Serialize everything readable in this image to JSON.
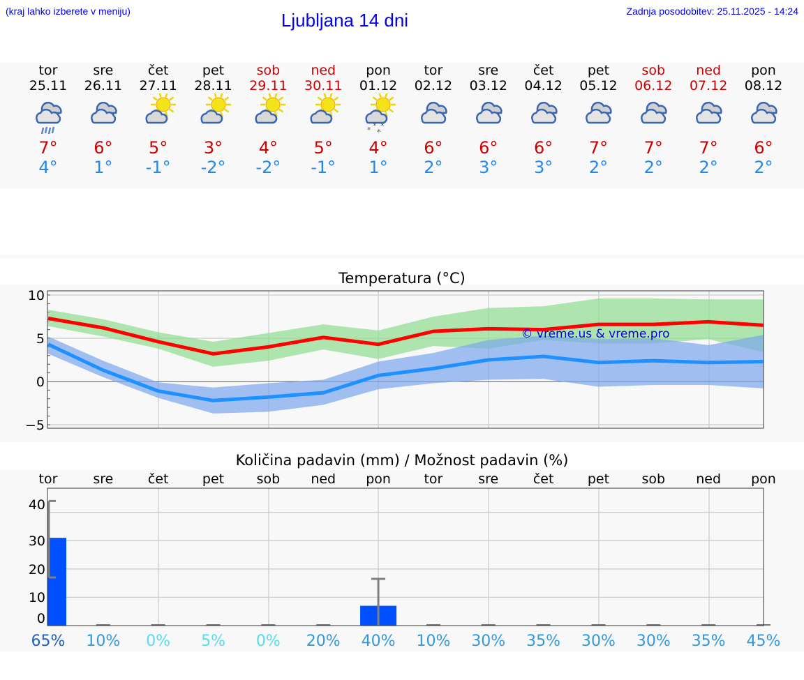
{
  "header": {
    "hint": "(kraj lahko izberete v meniju)",
    "title": "Ljubljana 14 dni",
    "updated": "Zadnja posodobitev: 25.11.2025 - 14:24"
  },
  "days": [
    {
      "name": "tor",
      "date": "25.11",
      "weekend": false,
      "icon": "cloud-rain-icon",
      "max": "7°",
      "min": "4°"
    },
    {
      "name": "sre",
      "date": "26.11",
      "weekend": false,
      "icon": "cloudy-icon",
      "max": "6°",
      "min": "1°"
    },
    {
      "name": "čet",
      "date": "27.11",
      "weekend": false,
      "icon": "partly-sunny-icon",
      "max": "5°",
      "min": "-1°"
    },
    {
      "name": "pet",
      "date": "28.11",
      "weekend": false,
      "icon": "partly-sunny-icon",
      "max": "3°",
      "min": "-2°"
    },
    {
      "name": "sob",
      "date": "29.11",
      "weekend": true,
      "icon": "partly-sunny-icon",
      "max": "4°",
      "min": "-2°"
    },
    {
      "name": "ned",
      "date": "30.11",
      "weekend": true,
      "icon": "partly-sunny-icon",
      "max": "5°",
      "min": "-1°"
    },
    {
      "name": "pon",
      "date": "01.12",
      "weekend": false,
      "icon": "partly-sunny-snow-icon",
      "max": "4°",
      "min": "1°"
    },
    {
      "name": "tor",
      "date": "02.12",
      "weekend": false,
      "icon": "cloudy-icon",
      "max": "6°",
      "min": "2°"
    },
    {
      "name": "sre",
      "date": "03.12",
      "weekend": false,
      "icon": "cloudy-icon",
      "max": "6°",
      "min": "3°"
    },
    {
      "name": "čet",
      "date": "04.12",
      "weekend": false,
      "icon": "cloudy-icon",
      "max": "6°",
      "min": "3°"
    },
    {
      "name": "pet",
      "date": "05.12",
      "weekend": false,
      "icon": "cloudy-icon",
      "max": "7°",
      "min": "2°"
    },
    {
      "name": "sob",
      "date": "06.12",
      "weekend": true,
      "icon": "cloudy-icon",
      "max": "7°",
      "min": "2°"
    },
    {
      "name": "ned",
      "date": "07.12",
      "weekend": true,
      "icon": "cloudy-icon",
      "max": "7°",
      "min": "2°"
    },
    {
      "name": "pon",
      "date": "08.12",
      "weekend": false,
      "icon": "cloudy-icon",
      "max": "6°",
      "min": "2°"
    }
  ],
  "chart_data": [
    {
      "type": "line",
      "title": "Temperatura (°C)",
      "watermark": "© vreme.us & vreme.pro",
      "ylim": [
        -5.4,
        10.5
      ],
      "yticks": [
        "10",
        "5",
        "0",
        "−5"
      ],
      "ytick_values": [
        10,
        5,
        0,
        -5
      ],
      "grid": true,
      "series": [
        {
          "key": "max",
          "color": "#ff0000",
          "values": [
            7.3,
            6.2,
            4.6,
            3.2,
            4.0,
            5.1,
            4.3,
            5.8,
            6.1,
            6.0,
            6.6,
            6.6,
            6.9,
            6.5
          ]
        },
        {
          "key": "min",
          "color": "#1e90ff",
          "values": [
            4.3,
            1.3,
            -1.1,
            -2.2,
            -1.8,
            -1.3,
            0.7,
            1.5,
            2.5,
            2.9,
            2.2,
            2.4,
            2.2,
            2.3
          ]
        }
      ],
      "bands": [
        {
          "key": "max-range",
          "color": "#8fdc8f",
          "upper": [
            8.3,
            7.2,
            5.7,
            4.6,
            5.6,
            6.6,
            5.9,
            7.5,
            8.5,
            8.7,
            9.6,
            9.6,
            9.5,
            9.5
          ],
          "lower": [
            6.4,
            5.2,
            3.8,
            1.7,
            2.4,
            3.7,
            2.6,
            4.1,
            3.8,
            4.8,
            4.4,
            4.4,
            4.9,
            3.4
          ]
        },
        {
          "key": "min-range",
          "color": "#7ba6ec",
          "upper": [
            5.2,
            2.4,
            -0.1,
            -0.7,
            -0.2,
            0.2,
            2.3,
            3.3,
            4.8,
            5.3,
            4.9,
            5.0,
            4.2,
            5.4
          ],
          "lower": [
            3.2,
            0.5,
            -1.9,
            -3.7,
            -3.5,
            -2.7,
            -0.9,
            -0.2,
            0.2,
            0.3,
            -0.6,
            -0.4,
            -0.4,
            -0.8
          ]
        }
      ]
    },
    {
      "type": "bar",
      "title": "Količina padavin (mm) / Možnost padavin (%)",
      "categories": [
        "tor",
        "sre",
        "čet",
        "pet",
        "sob",
        "ned",
        "pon",
        "tor",
        "sre",
        "čet",
        "pet",
        "sob",
        "ned",
        "pon"
      ],
      "ylim": [
        0,
        46
      ],
      "yticks": [
        "40",
        "30",
        "20",
        "10",
        "0"
      ],
      "ytick_values": [
        40,
        30,
        20,
        10,
        0
      ],
      "grid": true,
      "bar_color": "#0050ff",
      "values": [
        31,
        0,
        0,
        0,
        0,
        0,
        7,
        0,
        0,
        0,
        0,
        0,
        0,
        0
      ],
      "error_low": [
        17,
        0,
        0,
        0,
        0,
        0,
        0,
        0,
        0,
        0,
        0,
        0,
        0,
        0
      ],
      "error_high": [
        44,
        0,
        0,
        0,
        0,
        0,
        16.5,
        0,
        0,
        0,
        0,
        0,
        0,
        0
      ],
      "probability": [
        "65%",
        "10%",
        "0%",
        "5%",
        "0%",
        "20%",
        "40%",
        "10%",
        "30%",
        "35%",
        "30%",
        "30%",
        "35%",
        "45%"
      ],
      "probability_colors": [
        "#1f63b8",
        "#3399dd",
        "#55ddee",
        "#55ddee",
        "#55ddee",
        "#3399dd",
        "#3399dd",
        "#3399dd",
        "#3399dd",
        "#3399dd",
        "#3399dd",
        "#3399dd",
        "#3399dd",
        "#3399dd"
      ]
    }
  ]
}
